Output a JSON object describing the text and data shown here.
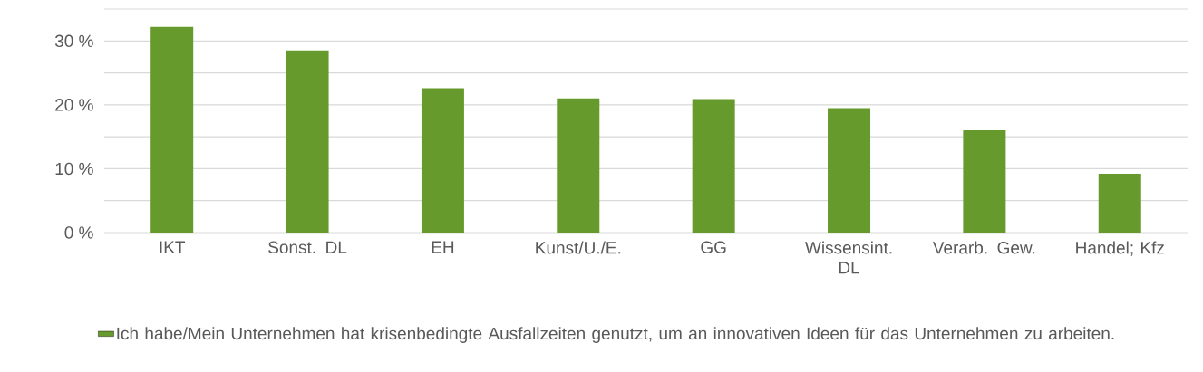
{
  "chart_data": {
    "type": "bar",
    "categories": [
      "IKT",
      "Sonst. DL",
      "EH",
      "Kunst/U./E.",
      "GG",
      "Wissensint. DL",
      "Verarb. Gew.",
      "Handel; Kfz"
    ],
    "series": [
      {
        "name": "Ich habe/Mein Unternehmen hat krisenbedingte Ausfallzeiten genutzt, um an innovativen Ideen für das Unternehmen zu arbeiten.",
        "color": "#669a2c",
        "values": [
          32.2,
          28.5,
          22.6,
          21.0,
          20.9,
          19.5,
          16.0,
          9.2
        ]
      }
    ],
    "ylim": [
      0,
      35
    ],
    "yticks": [
      {
        "value": 0,
        "label": "0 %"
      },
      {
        "value": 5,
        "label": null
      },
      {
        "value": 10,
        "label": "10 %"
      },
      {
        "value": 15,
        "label": null
      },
      {
        "value": 20,
        "label": "20 %"
      },
      {
        "value": 25,
        "label": null
      },
      {
        "value": 30,
        "label": "30 %"
      },
      {
        "value": 35,
        "label": null
      }
    ],
    "grid": "y",
    "legend": "bottom"
  }
}
